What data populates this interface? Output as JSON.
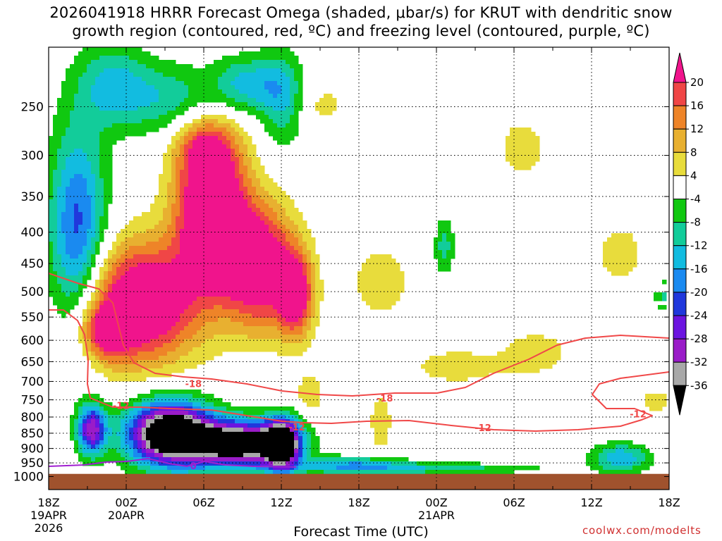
{
  "title_line1": "2026041918 HRRR Forecast Omega (shaded, μbar/s) for KRUT with dendritic snow",
  "title_line2": "growth region (contoured, red, ºC) and freezing level (contoured, purple, ºC)",
  "xaxis_title": "Forecast Time (UTC)",
  "credit": "coolwx.com/modelts",
  "chart_data": {
    "type": "heatmap",
    "title": "2026041918 HRRR Forecast Omega (shaded, μbar/s) for KRUT with dendritic snow growth region (contoured, red, ºC) and freezing level (contoured, purple, ºC)",
    "xlabel": "Forecast Time (UTC)",
    "ylabel": "",
    "x_ticks": [
      {
        "hour": 0,
        "label": "18Z",
        "sub1": "19APR",
        "sub2": "2026"
      },
      {
        "hour": 6,
        "label": "00Z",
        "sub1": "20APR",
        "sub2": ""
      },
      {
        "hour": 12,
        "label": "06Z",
        "sub1": "",
        "sub2": ""
      },
      {
        "hour": 18,
        "label": "12Z",
        "sub1": "",
        "sub2": ""
      },
      {
        "hour": 24,
        "label": "18Z",
        "sub1": "",
        "sub2": ""
      },
      {
        "hour": 30,
        "label": "00Z",
        "sub1": "21APR",
        "sub2": ""
      },
      {
        "hour": 36,
        "label": "06Z",
        "sub1": "",
        "sub2": ""
      },
      {
        "hour": 42,
        "label": "12Z",
        "sub1": "",
        "sub2": ""
      },
      {
        "hour": 48,
        "label": "18Z",
        "sub1": "",
        "sub2": ""
      }
    ],
    "xlim": [
      0,
      48
    ],
    "y_ticks": [
      250,
      300,
      350,
      400,
      450,
      500,
      550,
      600,
      650,
      700,
      750,
      800,
      850,
      900,
      950,
      1000
    ],
    "ylim": [
      200,
      1050
    ],
    "y_log_scale": true,
    "grid": true,
    "colorbar": {
      "levels": [
        -36,
        -32,
        -28,
        -24,
        -20,
        -16,
        -12,
        -8,
        -4,
        4,
        8,
        12,
        16,
        20
      ],
      "labels": [
        "20",
        "16",
        "12",
        "8",
        "4",
        "-4",
        "-8",
        "-12",
        "-16",
        "-20",
        "-24",
        "-28",
        "-32",
        "-36"
      ],
      "colors": {
        "lt_m36": "#000000",
        "m36_m32": "#a8a8a8",
        "m32_m28": "#9a1cc8",
        "m28_m24": "#6c14e0",
        "m24_m20": "#2038dc",
        "m20_m16": "#1a8af0",
        "m16_m12": "#12bce0",
        "m12_m8": "#12cc9a",
        "m8_m4": "#10c810",
        "m4_p4": "#ffffff",
        "p4_p8": "#e8dc3c",
        "p8_p12": "#e8b030",
        "p12_p16": "#ee8428",
        "p16_p20": "#f04646",
        "gt_p20": "#f0148c"
      }
    },
    "terrain_color": "#a0522d",
    "dgz_contour_color": "#f04848",
    "freezing_contour_color": "#a020d0",
    "contour_labels": [
      {
        "text": "-18",
        "hour": 11.2,
        "p": 706
      },
      {
        "text": "-18",
        "hour": 26.0,
        "p": 745
      },
      {
        "text": "-12",
        "hour": 5.6,
        "p": 766
      },
      {
        "text": "-12",
        "hour": 19.2,
        "p": 830
      },
      {
        "text": "-12",
        "hour": 33.6,
        "p": 832
      },
      {
        "text": "-12",
        "hour": 45.6,
        "p": 790
      },
      {
        "text": "0",
        "hour": 11.2,
        "p": 960
      }
    ],
    "omega_features": [
      {
        "name": "upward-core-upper",
        "level": 22,
        "hour": 9.2,
        "p": 430,
        "hw": 5.0,
        "hp": 170
      },
      {
        "name": "upward-ring",
        "level": 18,
        "hour": 10.0,
        "p": 470,
        "hw": 6.5,
        "hp": 230
      },
      {
        "name": "downward-core-low",
        "level": -38,
        "hour": 12.0,
        "p": 885,
        "hw": 7.0,
        "hp": 75
      }
    ]
  }
}
